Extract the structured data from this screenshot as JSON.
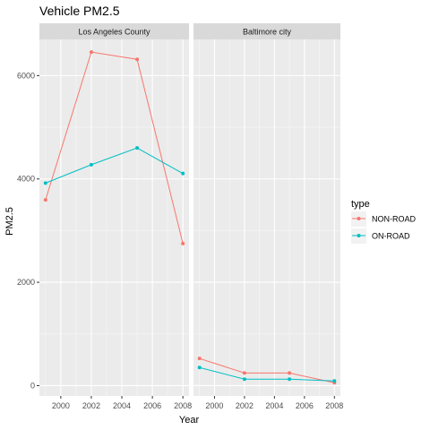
{
  "chart_data": {
    "type": "line",
    "title": "Vehicle PM2.5",
    "xlabel": "Year",
    "ylabel": "PM2.5",
    "legend": {
      "title": "type",
      "placement": "right"
    },
    "x": [
      1999,
      2002,
      2005,
      2008
    ],
    "xlim": [
      1998.6,
      2008.4
    ],
    "ylim": [
      -200,
      6700
    ],
    "x_ticks": [
      2000,
      2002,
      2004,
      2006,
      2008
    ],
    "y_ticks": [
      0,
      2000,
      4000,
      6000
    ],
    "x_tick_labels": [
      "2000",
      "2002",
      "2004",
      "2006",
      "2008"
    ],
    "y_tick_labels": [
      "0",
      "2000",
      "4000",
      "6000"
    ],
    "grid": true,
    "colors": {
      "NON-ROAD": "#F8766D",
      "ON-ROAD": "#00BFC4"
    },
    "panels": [
      {
        "label": "Los Angeles County",
        "series": [
          {
            "name": "NON-ROAD",
            "values": [
              3595,
              6455,
              6315,
              2750
            ]
          },
          {
            "name": "ON-ROAD",
            "values": [
              3920,
              4275,
              4600,
              4105
            ]
          }
        ]
      },
      {
        "label": "Baltimore city",
        "series": [
          {
            "name": "NON-ROAD",
            "values": [
              525,
              245,
              245,
              55
            ]
          },
          {
            "name": "ON-ROAD",
            "values": [
              350,
              125,
              125,
              90
            ]
          }
        ]
      }
    ]
  }
}
